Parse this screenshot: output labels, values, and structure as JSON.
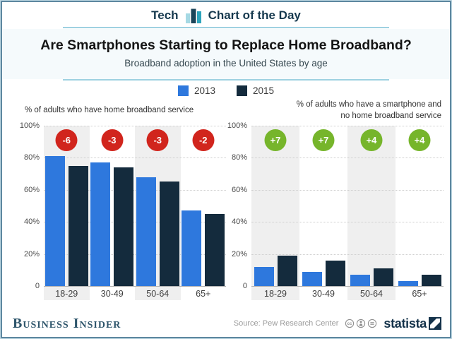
{
  "header": {
    "category": "Tech",
    "series": "Chart of the Day"
  },
  "title": "Are Smartphones Starting to Replace Home Broadband?",
  "subtitle": "Broadband adoption in the United States by age",
  "legend": {
    "position": "top-center",
    "items": [
      {
        "label": "2013",
        "color": "#2e78dd"
      },
      {
        "label": "2015",
        "color": "#142b3d"
      }
    ]
  },
  "chart_data": [
    {
      "type": "bar",
      "title": "% of adults who have home broadband service",
      "caption_lines": [
        "% of adults who have home broadband service"
      ],
      "categories": [
        "18-29",
        "30-49",
        "50-64",
        "65+"
      ],
      "series": [
        {
          "name": "2013",
          "color": "#2e78dd",
          "values": [
            81,
            77,
            68,
            47
          ]
        },
        {
          "name": "2015",
          "color": "#142b3d",
          "values": [
            75,
            74,
            65,
            45
          ]
        }
      ],
      "annotations": [
        "-6",
        "-3",
        "-3",
        "-2"
      ],
      "annotation_color": "#d1251d",
      "ylim": [
        0,
        100
      ],
      "yticks": [
        {
          "label": "100%",
          "value": 100
        },
        {
          "label": "80%",
          "value": 80
        },
        {
          "label": "60%",
          "value": 60
        },
        {
          "label": "40%",
          "value": 40
        },
        {
          "label": "20%",
          "value": 20
        },
        {
          "label": "0",
          "value": 0
        }
      ],
      "grid": "dotted-horizontal",
      "band_shading": "alternating"
    },
    {
      "type": "bar",
      "title": "% of adults who have a smartphone and no home broadband service",
      "caption_lines": [
        "% of adults who have a smartphone and",
        "no home broadband service"
      ],
      "categories": [
        "18-29",
        "30-49",
        "50-64",
        "65+"
      ],
      "series": [
        {
          "name": "2013",
          "color": "#2e78dd",
          "values": [
            12,
            9,
            7,
            3
          ]
        },
        {
          "name": "2015",
          "color": "#142b3d",
          "values": [
            19,
            16,
            11,
            7
          ]
        }
      ],
      "annotations": [
        "+7",
        "+7",
        "+4",
        "+4"
      ],
      "annotation_color": "#76b52b",
      "ylim": [
        0,
        100
      ],
      "yticks": [
        {
          "label": "100%",
          "value": 100
        },
        {
          "label": "80%",
          "value": 80
        },
        {
          "label": "60%",
          "value": 60
        },
        {
          "label": "40%",
          "value": 40
        },
        {
          "label": "20%",
          "value": 20
        },
        {
          "label": "0",
          "value": 0
        }
      ],
      "grid": "dotted-horizontal",
      "band_shading": "alternating"
    }
  ],
  "footer": {
    "publisher": "Business Insider",
    "source": "Source: Pew Research Center",
    "statista": "statista",
    "license_icons": [
      "cc-icon",
      "attribution-icon",
      "equal-icon"
    ]
  },
  "colors": {
    "bar_2013": "#2e78dd",
    "bar_2015": "#142b3d",
    "badge_decrease": "#d1251d",
    "badge_increase": "#76b52b",
    "frame_border": "#5e87a0",
    "accent_rule": "#9ed1e1",
    "band_shade": "#efefef"
  }
}
